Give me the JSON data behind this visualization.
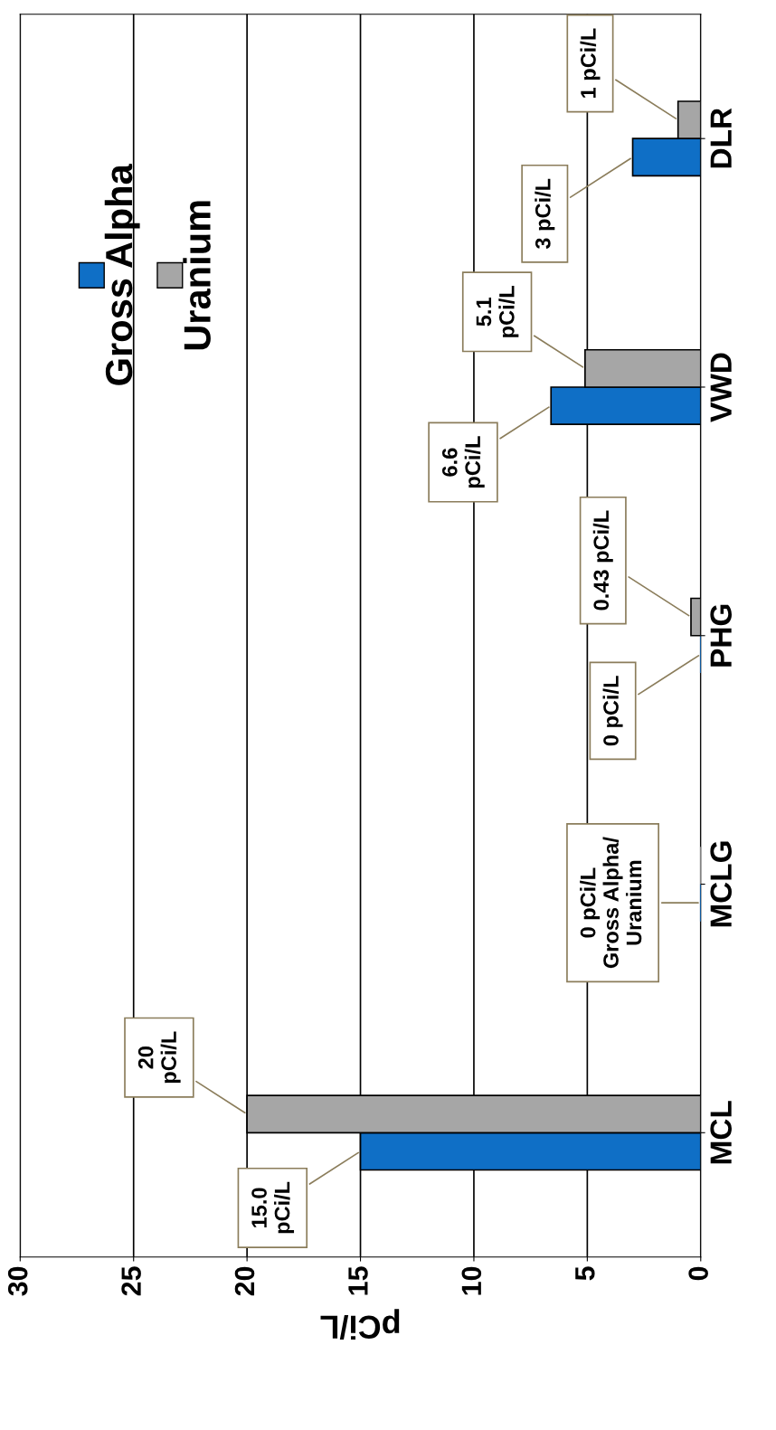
{
  "chart_data": {
    "type": "bar",
    "orientation": "horizontal",
    "xlabel": "pCi/L",
    "categories": [
      "DLR",
      "VWD",
      "PHG",
      "MCLG",
      "MCL"
    ],
    "series": [
      {
        "name": "Gross Alpha",
        "color": "#0f6fc6",
        "values": [
          3,
          6.6,
          0,
          0,
          15.0
        ],
        "value_labels": [
          "3 pCi/L",
          "6.6\npCi/L",
          "0 pCi/L",
          "0 pCi/L\nGross Alpha/\nUranium",
          "15.0\npCi/L"
        ]
      },
      {
        "name": "Uranium",
        "color": "#a6a6a6",
        "values": [
          1,
          5.1,
          0.43,
          0,
          20
        ],
        "value_labels": [
          "1 pCi/L",
          "5.1\npCi/L",
          "0.43 pCi/L",
          null,
          "20\npCi/L"
        ]
      }
    ],
    "xlim": [
      30,
      0
    ],
    "xticks": [
      0,
      5,
      10,
      15,
      20,
      25,
      30
    ],
    "grid": "x",
    "legend": "top left"
  }
}
